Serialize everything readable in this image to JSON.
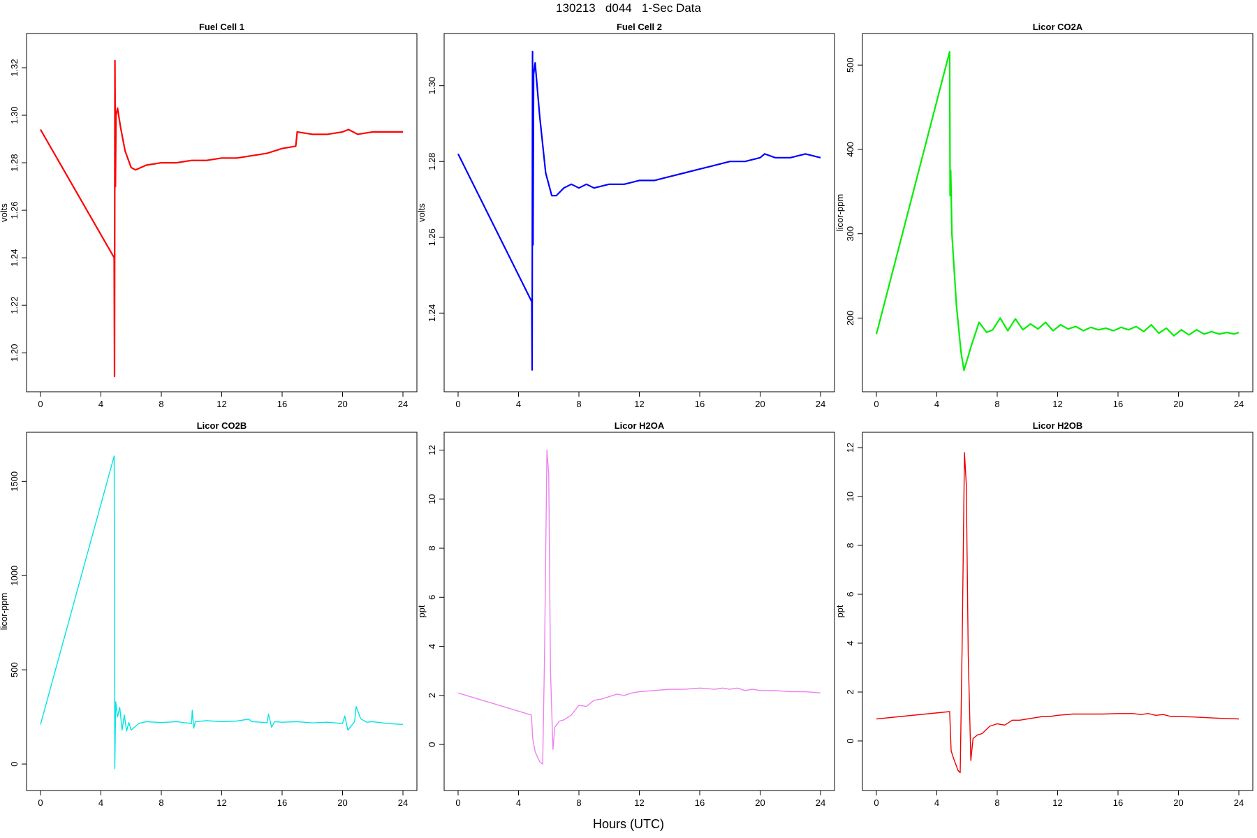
{
  "header": {
    "title": "130213   d044   1-Sec Data",
    "xlabel": "Hours (UTC)"
  },
  "chart_data": [
    {
      "type": "line",
      "title": "Fuel Cell 1",
      "ylabel": "volts",
      "color": "#ff0000",
      "xlim": [
        0,
        24
      ],
      "ylim": [
        1.188,
        1.33
      ],
      "xticks": [
        0,
        4,
        8,
        12,
        16,
        20,
        24
      ],
      "yticks": [
        1.2,
        1.22,
        1.24,
        1.26,
        1.28,
        1.3,
        1.32
      ],
      "ytick_labels": [
        "1.20",
        "1.22",
        "1.24",
        "1.26",
        "1.28",
        "1.30",
        "1.32"
      ],
      "x": [
        0,
        4.88,
        4.9,
        4.93,
        4.96,
        5.0,
        5.1,
        5.3,
        5.6,
        6.0,
        6.3,
        7,
        8,
        9,
        10,
        11,
        12,
        13,
        14,
        15,
        16,
        16.9,
        17.0,
        18,
        19,
        20,
        20.4,
        21,
        22,
        23,
        24
      ],
      "y": [
        1.294,
        1.24,
        1.19,
        1.323,
        1.27,
        1.3,
        1.303,
        1.295,
        1.285,
        1.278,
        1.277,
        1.279,
        1.28,
        1.28,
        1.281,
        1.281,
        1.282,
        1.282,
        1.283,
        1.284,
        1.286,
        1.287,
        1.293,
        1.292,
        1.292,
        1.293,
        1.294,
        1.292,
        1.293,
        1.293,
        1.293
      ]
    },
    {
      "type": "line",
      "title": "Fuel Cell 2",
      "ylabel": "volts",
      "color": "#0000ff",
      "xlim": [
        0,
        24
      ],
      "ylim": [
        1.222,
        1.311
      ],
      "xticks": [
        0,
        4,
        8,
        12,
        16,
        20,
        24
      ],
      "yticks": [
        1.24,
        1.26,
        1.28,
        1.3
      ],
      "ytick_labels": [
        "1.24",
        "1.26",
        "1.28",
        "1.30"
      ],
      "x": [
        0,
        4.88,
        4.9,
        4.93,
        4.96,
        5.0,
        5.1,
        5.4,
        5.8,
        6.2,
        6.5,
        7,
        7.5,
        8,
        8.5,
        9,
        10,
        11,
        12,
        13,
        14,
        15,
        16,
        17,
        18,
        19,
        20,
        20.3,
        21,
        22,
        23,
        24
      ],
      "y": [
        1.282,
        1.243,
        1.225,
        1.309,
        1.258,
        1.303,
        1.306,
        1.292,
        1.277,
        1.271,
        1.271,
        1.273,
        1.274,
        1.273,
        1.274,
        1.273,
        1.274,
        1.274,
        1.275,
        1.275,
        1.276,
        1.277,
        1.278,
        1.279,
        1.28,
        1.28,
        1.281,
        1.282,
        1.281,
        1.281,
        1.282,
        1.281
      ]
    },
    {
      "type": "line",
      "title": "Licor CO2A",
      "ylabel": "licor-ppm",
      "color": "#00ee00",
      "xlim": [
        0,
        24
      ],
      "ylim": [
        125,
        525
      ],
      "xticks": [
        0,
        4,
        8,
        12,
        16,
        20,
        24
      ],
      "yticks": [
        200,
        300,
        400,
        500
      ],
      "ytick_labels": [
        "200",
        "300",
        "400",
        "500"
      ],
      "x": [
        0,
        4.85,
        4.88,
        4.92,
        5.0,
        5.3,
        5.6,
        5.8,
        6.3,
        6.8,
        7.3,
        7.7,
        8.2,
        8.7,
        9.2,
        9.7,
        10.2,
        10.7,
        11.2,
        11.7,
        12.2,
        12.7,
        13.2,
        13.7,
        14.2,
        14.7,
        15.2,
        15.7,
        16.2,
        16.7,
        17.2,
        17.7,
        18.2,
        18.7,
        19.2,
        19.7,
        20.2,
        20.7,
        21.2,
        21.7,
        22.2,
        22.7,
        23.2,
        23.7,
        24
      ],
      "y": [
        181,
        516,
        345,
        375,
        300,
        215,
        160,
        138,
        168,
        195,
        183,
        186,
        200,
        185,
        199,
        186,
        193,
        187,
        195,
        185,
        192,
        187,
        190,
        185,
        189,
        186,
        188,
        185,
        189,
        186,
        190,
        184,
        192,
        182,
        188,
        179,
        186,
        180,
        186,
        181,
        184,
        181,
        183,
        181,
        183
      ]
    },
    {
      "type": "line",
      "title": "Licor CO2B",
      "ylabel": "licor-ppm",
      "color": "#00e5e5",
      "xlim": [
        0,
        24
      ],
      "ylim": [
        -85,
        1705
      ],
      "xticks": [
        0,
        4,
        8,
        12,
        16,
        20,
        24
      ],
      "yticks": [
        0,
        500,
        1000,
        1500
      ],
      "ytick_labels": [
        "0",
        "500",
        "1000",
        "1500"
      ],
      "x": [
        0,
        4.88,
        4.92,
        4.98,
        5.1,
        5.25,
        5.4,
        5.55,
        5.7,
        5.85,
        6.0,
        6.5,
        7,
        8,
        9,
        10,
        10.05,
        10.15,
        10.25,
        11,
        12,
        13,
        13.8,
        14,
        15,
        15.1,
        15.3,
        15.5,
        16,
        17,
        18,
        19,
        20,
        20.15,
        20.35,
        20.8,
        20.9,
        21.2,
        21.6,
        22,
        23,
        24
      ],
      "y": [
        210,
        1635,
        -25,
        330,
        250,
        300,
        180,
        260,
        175,
        220,
        180,
        215,
        225,
        220,
        225,
        215,
        285,
        190,
        225,
        230,
        225,
        228,
        238,
        225,
        220,
        265,
        195,
        225,
        222,
        225,
        218,
        222,
        215,
        255,
        180,
        225,
        305,
        240,
        222,
        225,
        215,
        210
      ]
    },
    {
      "type": "line",
      "title": "Licor H2OA",
      "ylabel": "ppt",
      "color": "#ee82ee",
      "xlim": [
        0,
        24
      ],
      "ylim": [
        -1.45,
        12.3
      ],
      "xticks": [
        0,
        4,
        8,
        12,
        16,
        20,
        24
      ],
      "yticks": [
        0,
        2,
        4,
        6,
        8,
        10,
        12
      ],
      "ytick_labels": [
        "0",
        "2",
        "4",
        "6",
        "8",
        "10",
        "12"
      ],
      "x": [
        0,
        4.85,
        4.95,
        5.1,
        5.4,
        5.6,
        5.72,
        5.88,
        6.0,
        6.12,
        6.28,
        6.4,
        6.7,
        7.0,
        7.5,
        8.0,
        8.5,
        9.0,
        9.5,
        10,
        10.5,
        11,
        11.5,
        12,
        13,
        14,
        15,
        16,
        17,
        17.5,
        18,
        18.5,
        19,
        19.5,
        20,
        21,
        22,
        23,
        24
      ],
      "y": [
        2.1,
        1.2,
        0.2,
        -0.3,
        -0.7,
        -0.8,
        3.5,
        12.0,
        11.0,
        3.0,
        -0.2,
        0.7,
        0.95,
        1.0,
        1.2,
        1.6,
        1.55,
        1.8,
        1.85,
        1.95,
        2.05,
        2.0,
        2.1,
        2.15,
        2.2,
        2.25,
        2.25,
        2.3,
        2.25,
        2.3,
        2.25,
        2.3,
        2.2,
        2.25,
        2.2,
        2.2,
        2.15,
        2.15,
        2.1
      ]
    },
    {
      "type": "line",
      "title": "Licor H2OB",
      "ylabel": "ppt",
      "color": "#ee0000",
      "xlim": [
        0,
        24
      ],
      "ylim": [
        -1.6,
        12.2
      ],
      "xticks": [
        0,
        4,
        8,
        12,
        16,
        20,
        24
      ],
      "yticks": [
        0,
        2,
        4,
        6,
        8,
        10,
        12
      ],
      "ytick_labels": [
        "0",
        "2",
        "4",
        "6",
        "8",
        "10",
        "12"
      ],
      "x": [
        0,
        4.85,
        4.95,
        5.1,
        5.4,
        5.55,
        5.68,
        5.83,
        5.95,
        6.08,
        6.25,
        6.4,
        6.7,
        7.0,
        7.5,
        8.0,
        8.5,
        9.0,
        9.5,
        10,
        10.5,
        11,
        11.5,
        12,
        13,
        14,
        15,
        16,
        17,
        17.5,
        18,
        18.5,
        19,
        19.5,
        20,
        21,
        22,
        23,
        24
      ],
      "y": [
        0.9,
        1.2,
        -0.4,
        -0.7,
        -1.2,
        -1.3,
        4.0,
        11.8,
        10.5,
        3.5,
        -0.8,
        0.1,
        0.25,
        0.3,
        0.6,
        0.7,
        0.65,
        0.85,
        0.85,
        0.9,
        0.95,
        1.0,
        1.0,
        1.05,
        1.1,
        1.1,
        1.1,
        1.12,
        1.12,
        1.08,
        1.12,
        1.05,
        1.08,
        1.0,
        1.0,
        0.98,
        0.95,
        0.92,
        0.9
      ]
    }
  ]
}
